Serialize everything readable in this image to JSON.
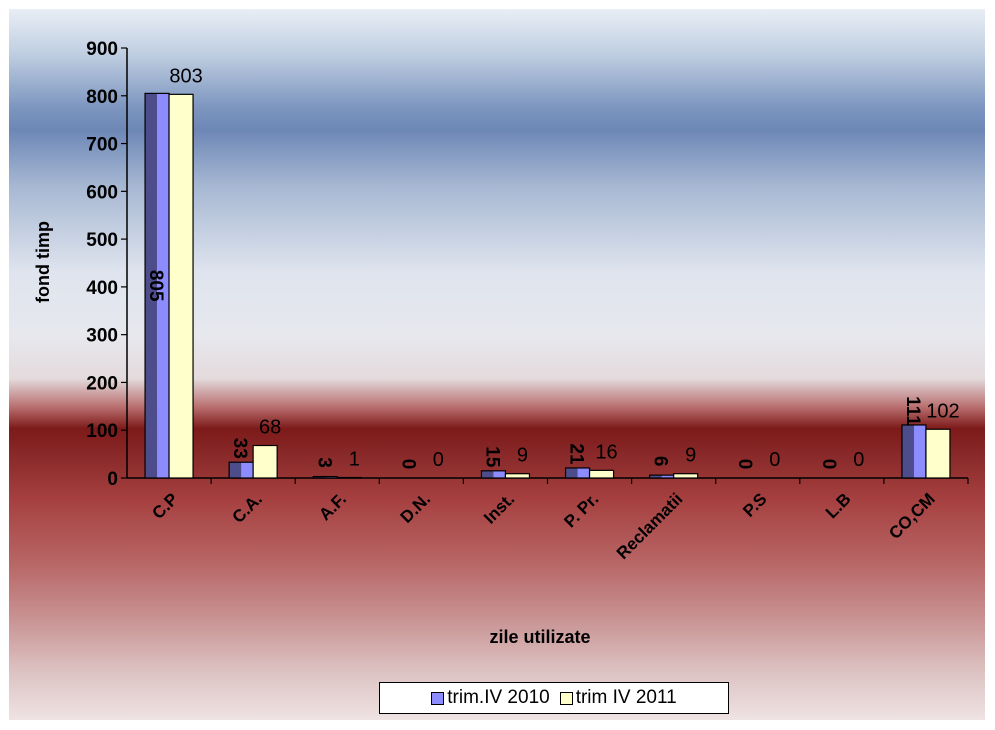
{
  "chart_data": {
    "type": "bar",
    "categories": [
      "C.P",
      "C.A.",
      "A.F.",
      "D.N.",
      "Inst.",
      "P. Pr.",
      "Reclamatii",
      "P.S",
      "L.B",
      "CO,CM"
    ],
    "series": [
      {
        "name": "trim.IV 2010",
        "values": [
          805,
          33,
          3,
          0,
          15,
          21,
          6,
          0,
          0,
          111
        ],
        "color": "#8c8cff"
      },
      {
        "name": "trim IV 2011",
        "values": [
          803,
          68,
          1,
          0,
          9,
          16,
          9,
          0,
          0,
          102
        ],
        "color": "#ffffcc"
      }
    ],
    "xlabel": "zile utilizate",
    "ylabel": "fond timp",
    "ylim": [
      0,
      900
    ],
    "yticks": [
      "0",
      "100",
      "200",
      "300",
      "400",
      "500",
      "600",
      "700",
      "800",
      "900"
    ],
    "grid": false,
    "legend": "bottom"
  }
}
